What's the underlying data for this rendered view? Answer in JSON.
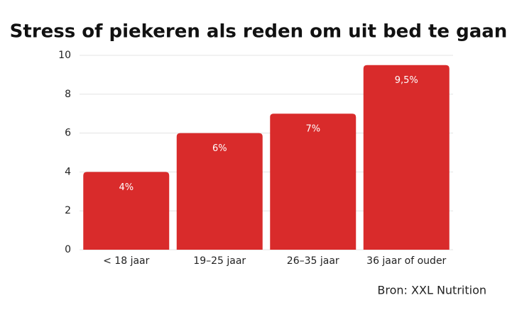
{
  "chart_data": {
    "type": "bar",
    "title": "Stress of piekeren als reden om uit bed te gaan",
    "categories": [
      "< 18 jaar",
      "19–25 jaar",
      "26–35 jaar",
      "36 jaar of ouder"
    ],
    "values": [
      4,
      6,
      7,
      9.5
    ],
    "value_labels": [
      "4%",
      "6%",
      "7%",
      "9,5%"
    ],
    "color": "#d92b2b",
    "ylim": [
      0,
      10
    ],
    "yticks": [
      0,
      2,
      4,
      6,
      8,
      10
    ],
    "grid": true,
    "source": "Bron: XXL Nutrition"
  }
}
